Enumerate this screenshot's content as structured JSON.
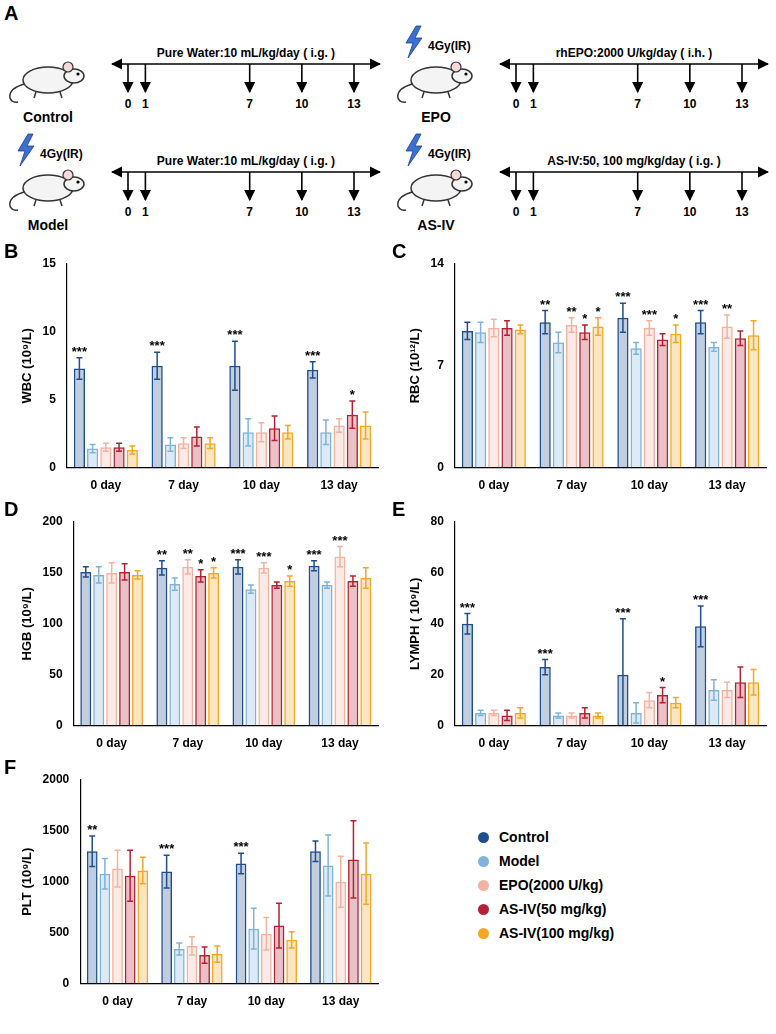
{
  "diagram": {
    "panel_label": "A",
    "days": [
      0,
      1,
      7,
      10,
      13
    ],
    "groups": [
      {
        "name": "Control",
        "treatment": "Pure Water:10 mL/kg/day ( i.g. )"
      },
      {
        "name": "EPO",
        "irradiation": "4Gy(IR)",
        "treatment": "rhEPO:2000 U/kg/day ( i.h. )"
      },
      {
        "name": "Model",
        "irradiation": "4Gy(IR)",
        "treatment": "Pure Water:10 mL/kg/day ( i.g. )"
      },
      {
        "name": "AS-IV",
        "irradiation": "4Gy(IR)",
        "treatment": "AS-IV:50, 100 mg/kg/day ( i.g. )"
      }
    ]
  },
  "chart_data": [
    {
      "type": "bar",
      "panel_label": "B",
      "y_label": "WBC (10⁹/L)",
      "categories": [
        "0 day",
        "7 day",
        "10 day",
        "13 day"
      ],
      "ylim": [
        0,
        15
      ],
      "yticks": [
        0,
        5,
        10,
        15
      ],
      "grid": false,
      "series": [
        {
          "name": "Control",
          "color": "#1f4e8c",
          "values": [
            7.3,
            7.5,
            7.5,
            7.2
          ],
          "errors": [
            0.8,
            1.0,
            1.8,
            0.6
          ],
          "significance": [
            "***",
            "***",
            "***",
            "***"
          ]
        },
        {
          "name": "Model",
          "color": "#7fb3d9",
          "values": [
            1.4,
            1.7,
            2.6,
            2.6
          ],
          "errors": [
            0.3,
            0.5,
            1.0,
            0.9
          ],
          "significance": [
            null,
            null,
            null,
            null
          ]
        },
        {
          "name": "EPO(2000 U/kg)",
          "color": "#f2b2a0",
          "values": [
            1.5,
            1.8,
            2.6,
            3.1
          ],
          "errors": [
            0.3,
            0.4,
            0.7,
            0.5
          ],
          "significance": [
            null,
            null,
            null,
            null
          ]
        },
        {
          "name": "AS-IV(50 mg/kg)",
          "color": "#b22234",
          "values": [
            1.5,
            2.3,
            2.9,
            3.9
          ],
          "errors": [
            0.3,
            0.7,
            0.9,
            1.0
          ],
          "significance": [
            null,
            null,
            null,
            "*"
          ]
        },
        {
          "name": "AS-IV(100 mg/kg)",
          "color": "#f5a623",
          "values": [
            1.3,
            1.8,
            2.6,
            3.1
          ],
          "errors": [
            0.3,
            0.4,
            0.5,
            1.0
          ],
          "significance": [
            null,
            null,
            null,
            null
          ]
        }
      ]
    },
    {
      "type": "bar",
      "panel_label": "C",
      "y_label": "RBC (10¹²/L)",
      "categories": [
        "0 day",
        "7 day",
        "10 day",
        "13 day"
      ],
      "ylim": [
        0,
        14
      ],
      "yticks": [
        0,
        7,
        14
      ],
      "grid": false,
      "series": [
        {
          "name": "Control",
          "color": "#1f4e8c",
          "values": [
            9.4,
            10.0,
            10.3,
            10.0
          ],
          "errors": [
            0.6,
            0.8,
            1.0,
            0.8
          ],
          "significance": [
            null,
            "**",
            "***",
            "***"
          ]
        },
        {
          "name": "Model",
          "color": "#7fb3d9",
          "values": [
            9.3,
            8.6,
            8.2,
            8.3
          ],
          "errors": [
            0.7,
            0.7,
            0.4,
            0.3
          ],
          "significance": [
            null,
            null,
            null,
            null
          ]
        },
        {
          "name": "EPO(2000 U/kg)",
          "color": "#f2b2a0",
          "values": [
            9.6,
            9.8,
            9.6,
            9.7
          ],
          "errors": [
            0.6,
            0.5,
            0.5,
            0.8
          ],
          "significance": [
            null,
            "**",
            "***",
            "**"
          ]
        },
        {
          "name": "AS-IV(50 mg/kg)",
          "color": "#b22234",
          "values": [
            9.6,
            9.3,
            8.8,
            8.9
          ],
          "errors": [
            0.5,
            0.5,
            0.4,
            0.5
          ],
          "significance": [
            null,
            "*",
            null,
            null
          ]
        },
        {
          "name": "AS-IV(100 mg/kg)",
          "color": "#f5a623",
          "values": [
            9.5,
            9.7,
            9.2,
            9.1
          ],
          "errors": [
            0.3,
            0.6,
            0.6,
            1.0
          ],
          "significance": [
            null,
            "*",
            "*",
            null
          ]
        }
      ]
    },
    {
      "type": "bar",
      "panel_label": "D",
      "y_label": "HGB (10⁹/L)",
      "categories": [
        "0 day",
        "7 day",
        "10 day",
        "13 day"
      ],
      "ylim": [
        0,
        200
      ],
      "yticks": [
        0,
        50,
        100,
        150,
        200
      ],
      "grid": false,
      "series": [
        {
          "name": "Control",
          "color": "#1f4e8c",
          "values": [
            151,
            155,
            156,
            157
          ],
          "errors": [
            5,
            7,
            7,
            5
          ],
          "significance": [
            null,
            "**",
            "***",
            "***"
          ]
        },
        {
          "name": "Model",
          "color": "#7fb3d9",
          "values": [
            148,
            139,
            134,
            138
          ],
          "errors": [
            8,
            6,
            4,
            3
          ],
          "significance": [
            null,
            null,
            null,
            null
          ]
        },
        {
          "name": "EPO(2000 U/kg)",
          "color": "#f2b2a0",
          "values": [
            150,
            156,
            155,
            166
          ],
          "errors": [
            10,
            7,
            5,
            10
          ],
          "significance": [
            null,
            "**",
            "***",
            "***"
          ]
        },
        {
          "name": "AS-IV(50 mg/kg)",
          "color": "#b22234",
          "values": [
            151,
            147,
            138,
            142
          ],
          "errors": [
            8,
            6,
            3,
            5
          ],
          "significance": [
            null,
            "*",
            null,
            null
          ]
        },
        {
          "name": "AS-IV(100 mg/kg)",
          "color": "#f5a623",
          "values": [
            148,
            150,
            142,
            145
          ],
          "errors": [
            4,
            5,
            5,
            10
          ],
          "significance": [
            null,
            "*",
            "*",
            null
          ]
        }
      ]
    },
    {
      "type": "bar",
      "panel_label": "E",
      "y_label": "LYMPH ( 10⁹/L)",
      "categories": [
        "0 day",
        "7 day",
        "10 day",
        "13 day"
      ],
      "ylim": [
        0,
        80
      ],
      "yticks": [
        0,
        20,
        40,
        60,
        80
      ],
      "grid": false,
      "series": [
        {
          "name": "Control",
          "color": "#1f4e8c",
          "values": [
            40,
            23,
            20,
            39
          ],
          "errors": [
            4,
            3,
            22,
            8
          ],
          "significance": [
            "***",
            "***",
            "***",
            "***"
          ]
        },
        {
          "name": "Model",
          "color": "#7fb3d9",
          "values": [
            5,
            4,
            5,
            14
          ],
          "errors": [
            1,
            1,
            4,
            4
          ],
          "significance": [
            null,
            null,
            null,
            null
          ]
        },
        {
          "name": "EPO(2000 U/kg)",
          "color": "#f2b2a0",
          "values": [
            5,
            4,
            10,
            14
          ],
          "errors": [
            1,
            1,
            3,
            3
          ],
          "significance": [
            null,
            null,
            null,
            null
          ]
        },
        {
          "name": "AS-IV(50 mg/kg)",
          "color": "#b22234",
          "values": [
            4,
            5,
            12,
            17
          ],
          "errors": [
            2,
            2,
            3,
            6
          ],
          "significance": [
            null,
            null,
            "*",
            null
          ]
        },
        {
          "name": "AS-IV(100 mg/kg)",
          "color": "#f5a623",
          "values": [
            5,
            4,
            9,
            17
          ],
          "errors": [
            2,
            1,
            2,
            5
          ],
          "significance": [
            null,
            null,
            null,
            null
          ]
        }
      ]
    },
    {
      "type": "bar",
      "panel_label": "F",
      "y_label": "PLT (10⁹/L)",
      "categories": [
        "0 day",
        "7 day",
        "10 day",
        "13 day"
      ],
      "ylim": [
        0,
        2000
      ],
      "yticks": [
        0,
        500,
        1000,
        1500,
        2000
      ],
      "grid": false,
      "legend": "right",
      "series": [
        {
          "name": "Control",
          "color": "#1f4e8c",
          "values": [
            1300,
            1100,
            1180,
            1300
          ],
          "errors": [
            150,
            160,
            100,
            100
          ],
          "significance": [
            "**",
            "***",
            "***",
            null
          ]
        },
        {
          "name": "Model",
          "color": "#7fb3d9",
          "values": [
            1080,
            340,
            540,
            1160
          ],
          "errors": [
            150,
            60,
            200,
            300
          ],
          "significance": [
            null,
            null,
            null,
            null
          ]
        },
        {
          "name": "EPO(2000 U/kg)",
          "color": "#f2b2a0",
          "values": [
            1130,
            370,
            490,
            1000
          ],
          "errors": [
            180,
            90,
            160,
            250
          ],
          "significance": [
            null,
            null,
            null,
            null
          ]
        },
        {
          "name": "AS-IV(50 mg/kg)",
          "color": "#b22234",
          "values": [
            1060,
            280,
            570,
            1220
          ],
          "errors": [
            250,
            80,
            220,
            380
          ],
          "significance": [
            null,
            null,
            null,
            null
          ]
        },
        {
          "name": "AS-IV(100 mg/kg)",
          "color": "#f5a623",
          "values": [
            1110,
            290,
            430,
            1080
          ],
          "errors": [
            130,
            80,
            80,
            300
          ],
          "significance": [
            null,
            null,
            null,
            null
          ]
        }
      ]
    }
  ]
}
